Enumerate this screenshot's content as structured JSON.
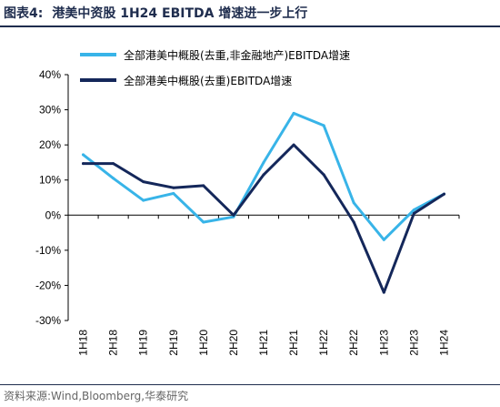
{
  "header": {
    "figure_label": "图表4:",
    "title": "港美中资股 1H24 EBITDA 增速进一步上行"
  },
  "source": "资料来源:Wind,Bloomberg,华泰研究",
  "colors": {
    "series_light": "#38b4e8",
    "series_dark": "#14275a",
    "axis": "#000000"
  },
  "chart_data": {
    "type": "line",
    "categories": [
      "1H18",
      "2H18",
      "1H19",
      "2H19",
      "1H20",
      "2H20",
      "1H21",
      "2H21",
      "1H22",
      "2H22",
      "1H23",
      "2H23",
      "1H24"
    ],
    "ylim": [
      -30,
      40
    ],
    "yticks": [
      -30,
      -20,
      -10,
      0,
      10,
      20,
      30,
      40
    ],
    "ytick_labels": [
      "-30%",
      "-20%",
      "-10%",
      "0%",
      "10%",
      "20%",
      "30%",
      "40%"
    ],
    "grid": false,
    "legend": "top-left",
    "series": [
      {
        "name": "全部港美中概股(去重,非金融地产)EBITDA增速",
        "color": "#38b4e8",
        "values": [
          17.2,
          10.5,
          4.2,
          6.2,
          -2.0,
          -0.5,
          15.0,
          29.0,
          25.5,
          3.5,
          -7.0,
          1.5,
          6.0
        ]
      },
      {
        "name": "全部港美中概股(去重)EBITDA增速",
        "color": "#14275a",
        "values": [
          14.7,
          14.7,
          9.5,
          7.8,
          8.4,
          0.0,
          11.5,
          20.0,
          11.5,
          -2.0,
          -22.0,
          0.5,
          6.0
        ]
      }
    ]
  }
}
